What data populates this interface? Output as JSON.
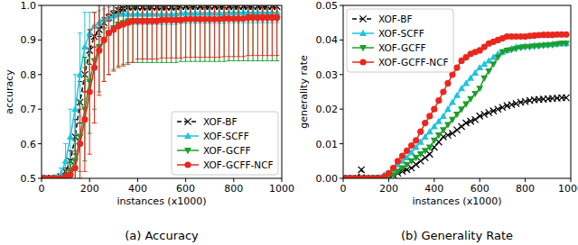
{
  "chart_data": [
    {
      "type": "line",
      "title": "(a) Accuracy",
      "x_label": "instances (x1000)",
      "y_label": "accuracy",
      "x": [
        0,
        20,
        40,
        60,
        80,
        100,
        120,
        140,
        160,
        180,
        200,
        220,
        240,
        260,
        280,
        300,
        320,
        340,
        360,
        380,
        400,
        420,
        440,
        460,
        480,
        500,
        520,
        540,
        560,
        580,
        600,
        620,
        640,
        660,
        680,
        700,
        720,
        740,
        760,
        780,
        800,
        820,
        840,
        860,
        880,
        900,
        920,
        940,
        960,
        980
      ],
      "xlim": [
        0,
        1000
      ],
      "xticks": [
        0,
        200,
        400,
        600,
        800,
        1000
      ],
      "ylim": [
        0.5,
        1.0
      ],
      "yticks": [
        0.5,
        0.6,
        0.7,
        0.8,
        0.9,
        {
          "value": 1.0,
          "label": "1.0"
        }
      ],
      "grid": false,
      "legend": "lower right",
      "series": [
        {
          "name": "XOF-BF",
          "color": "#000000",
          "marker": "x",
          "line_style": "dashed",
          "values": [
            0.5,
            0.5,
            0.5,
            0.5,
            0.505,
            0.52,
            0.55,
            0.62,
            0.72,
            0.8,
            0.87,
            0.91,
            0.93,
            0.95,
            0.965,
            0.975,
            0.985,
            0.99,
            0.995,
            0.995,
            0.995,
            0.995,
            0.995,
            0.995,
            0.995,
            0.995,
            0.995,
            0.995,
            0.995,
            0.997,
            0.997,
            0.997,
            0.997,
            0.997,
            0.997,
            0.997,
            0.997,
            0.997,
            0.997,
            0.997,
            0.997,
            0.997,
            0.997,
            0.997,
            0.997,
            0.997,
            0.997,
            0.997,
            0.997,
            0.997
          ],
          "errors": [
            0,
            0,
            0,
            0,
            0.005,
            0.01,
            0.03,
            0.05,
            0.06,
            0.05,
            0.04,
            0.03,
            0.02,
            0.015,
            0.01,
            0.01,
            0.008,
            0.006,
            0.005,
            0.005,
            0.005,
            0.005,
            0.005,
            0.005,
            0.005,
            0.005,
            0.005,
            0.005,
            0.005,
            0.004,
            0.004,
            0.004,
            0.004,
            0.004,
            0.004,
            0.004,
            0.004,
            0.004,
            0.004,
            0.004,
            0.004,
            0.004,
            0.004,
            0.004,
            0.004,
            0.004,
            0.004,
            0.004,
            0.004,
            0.004
          ]
        },
        {
          "name": "XOF-SCFF",
          "color": "#1fc3dc",
          "marker": "triangle-up",
          "line_style": "solid",
          "values": [
            0.5,
            0.5,
            0.5,
            0.5,
            0.51,
            0.55,
            0.62,
            0.7,
            0.8,
            0.88,
            0.92,
            0.94,
            0.95,
            0.96,
            0.965,
            0.97,
            0.975,
            0.975,
            0.975,
            0.975,
            0.975,
            0.975,
            0.975,
            0.975,
            0.975,
            0.975,
            0.975,
            0.975,
            0.975,
            0.978,
            0.978,
            0.978,
            0.978,
            0.978,
            0.978,
            0.978,
            0.978,
            0.978,
            0.978,
            0.98,
            0.98,
            0.98,
            0.98,
            0.98,
            0.98,
            0.98,
            0.98,
            0.98,
            0.98,
            0.98
          ],
          "errors": [
            0,
            0,
            0.005,
            0.01,
            0.02,
            0.05,
            0.08,
            0.1,
            0.12,
            0.1,
            0.06,
            0.04,
            0.035,
            0.03,
            0.03,
            0.03,
            0.03,
            0.03,
            0.03,
            0.03,
            0.03,
            0.03,
            0.03,
            0.03,
            0.03,
            0.03,
            0.03,
            0.03,
            0.03,
            0.03,
            0.03,
            0.03,
            0.03,
            0.03,
            0.03,
            0.03,
            0.03,
            0.03,
            0.03,
            0.03,
            0.03,
            0.03,
            0.03,
            0.03,
            0.03,
            0.03,
            0.03,
            0.03,
            0.03,
            0.03
          ]
        },
        {
          "name": "XOF-GCFF",
          "color": "#1e9e2a",
          "marker": "triangle-down",
          "line_style": "solid",
          "values": [
            0.5,
            0.5,
            0.5,
            0.5,
            0.5,
            0.505,
            0.52,
            0.55,
            0.62,
            0.7,
            0.78,
            0.84,
            0.88,
            0.9,
            0.92,
            0.935,
            0.945,
            0.95,
            0.955,
            0.955,
            0.955,
            0.955,
            0.955,
            0.955,
            0.955,
            0.955,
            0.955,
            0.955,
            0.955,
            0.958,
            0.958,
            0.958,
            0.958,
            0.958,
            0.958,
            0.958,
            0.958,
            0.958,
            0.958,
            0.96,
            0.96,
            0.96,
            0.96,
            0.96,
            0.96,
            0.96,
            0.96,
            0.96,
            0.96,
            0.96
          ],
          "errors": [
            0,
            0,
            0,
            0,
            0.005,
            0.01,
            0.03,
            0.06,
            0.1,
            0.15,
            0.15,
            0.14,
            0.13,
            0.12,
            0.12,
            0.12,
            0.12,
            0.12,
            0.12,
            0.12,
            0.12,
            0.12,
            0.12,
            0.12,
            0.12,
            0.12,
            0.12,
            0.12,
            0.12,
            0.12,
            0.12,
            0.12,
            0.12,
            0.12,
            0.12,
            0.12,
            0.12,
            0.12,
            0.12,
            0.12,
            0.12,
            0.12,
            0.12,
            0.12,
            0.12,
            0.12,
            0.12,
            0.12,
            0.12,
            0.12
          ]
        },
        {
          "name": "XOF-GCFF-NCF",
          "color": "#e8281e",
          "marker": "circle",
          "line_style": "solid",
          "values": [
            0.5,
            0.5,
            0.5,
            0.5,
            0.5,
            0.505,
            0.51,
            0.53,
            0.6,
            0.67,
            0.75,
            0.82,
            0.87,
            0.9,
            0.92,
            0.93,
            0.94,
            0.945,
            0.95,
            0.955,
            0.955,
            0.955,
            0.955,
            0.955,
            0.955,
            0.958,
            0.958,
            0.958,
            0.958,
            0.958,
            0.96,
            0.96,
            0.96,
            0.96,
            0.96,
            0.96,
            0.96,
            0.96,
            0.962,
            0.962,
            0.962,
            0.962,
            0.962,
            0.965,
            0.965,
            0.965,
            0.965,
            0.965,
            0.965,
            0.965
          ],
          "errors": [
            0,
            0,
            0,
            0,
            0.005,
            0.01,
            0.02,
            0.05,
            0.1,
            0.15,
            0.18,
            0.16,
            0.13,
            0.12,
            0.12,
            0.12,
            0.12,
            0.12,
            0.12,
            0.12,
            0.11,
            0.11,
            0.11,
            0.11,
            0.11,
            0.11,
            0.11,
            0.11,
            0.11,
            0.11,
            0.11,
            0.11,
            0.11,
            0.11,
            0.11,
            0.11,
            0.11,
            0.11,
            0.11,
            0.11,
            0.11,
            0.11,
            0.11,
            0.11,
            0.11,
            0.11,
            0.11,
            0.11,
            0.11,
            0.11
          ]
        }
      ]
    },
    {
      "type": "line",
      "title": "(b) Generality Rate",
      "x_label": "instances (x1000)",
      "y_label": "generality rate",
      "x": [
        0,
        20,
        40,
        60,
        80,
        100,
        120,
        140,
        160,
        180,
        200,
        220,
        240,
        260,
        280,
        300,
        320,
        340,
        360,
        380,
        400,
        420,
        440,
        460,
        480,
        500,
        520,
        540,
        560,
        580,
        600,
        620,
        640,
        660,
        680,
        700,
        720,
        740,
        760,
        780,
        800,
        820,
        840,
        860,
        880,
        900,
        920,
        940,
        960,
        980
      ],
      "xlim": [
        0,
        1000
      ],
      "xticks": [
        0,
        200,
        400,
        600,
        800,
        1000
      ],
      "ylim": [
        0,
        0.05
      ],
      "yticks": [
        {
          "value": 0,
          "label": "0.00"
        },
        0.01,
        0.02,
        0.03,
        0.04,
        0.05
      ],
      "grid": false,
      "legend": "upper left",
      "series": [
        {
          "name": "XOF-BF",
          "color": "#000000",
          "marker": "x",
          "line_style": "dashed",
          "values": [
            0,
            0,
            0,
            0,
            0.0025,
            0,
            0,
            0,
            0,
            0,
            0.0005,
            0.001,
            0.0015,
            0.002,
            0.0025,
            0.003,
            0.004,
            0.005,
            0.006,
            0.007,
            0.009,
            0.0105,
            0.012,
            0.0125,
            0.013,
            0.014,
            0.015,
            0.016,
            0.0165,
            0.017,
            0.018,
            0.0185,
            0.019,
            0.0195,
            0.02,
            0.0205,
            0.021,
            0.0213,
            0.0216,
            0.022,
            0.0222,
            0.0225,
            0.0227,
            0.0228,
            0.0229,
            0.023,
            0.0231,
            0.0232,
            0.0233,
            0.0233
          ]
        },
        {
          "name": "XOF-SCFF",
          "color": "#1fc3dc",
          "marker": "triangle-up",
          "line_style": "solid",
          "values": [
            0,
            0,
            0,
            0,
            0,
            0,
            0,
            0,
            0.0003,
            0.001,
            0.0015,
            0.0025,
            0.004,
            0.005,
            0.006,
            0.0075,
            0.009,
            0.0105,
            0.012,
            0.0135,
            0.015,
            0.0165,
            0.018,
            0.02,
            0.022,
            0.024,
            0.026,
            0.0275,
            0.029,
            0.0305,
            0.032,
            0.033,
            0.034,
            0.035,
            0.036,
            0.0365,
            0.037,
            0.0375,
            0.038,
            0.038,
            0.0382,
            0.0383,
            0.0384,
            0.0385,
            0.0386,
            0.0387,
            0.0388,
            0.0389,
            0.039,
            0.039
          ]
        },
        {
          "name": "XOF-GCFF",
          "color": "#1e9e2a",
          "marker": "triangle-down",
          "line_style": "solid",
          "values": [
            0,
            0,
            0,
            0,
            0,
            0,
            0,
            0,
            0,
            0,
            0.0005,
            0.001,
            0.002,
            0.003,
            0.004,
            0.005,
            0.006,
            0.007,
            0.008,
            0.009,
            0.011,
            0.0125,
            0.014,
            0.0155,
            0.017,
            0.0185,
            0.02,
            0.0215,
            0.023,
            0.0245,
            0.026,
            0.029,
            0.031,
            0.033,
            0.035,
            0.0365,
            0.037,
            0.0372,
            0.0375,
            0.0378,
            0.038,
            0.038,
            0.0382,
            0.0383,
            0.0384,
            0.0385,
            0.0386,
            0.0388,
            0.039,
            0.039
          ]
        },
        {
          "name": "XOF-GCFF-NCF",
          "color": "#e8281e",
          "marker": "circle",
          "line_style": "solid",
          "values": [
            0,
            0,
            0,
            0,
            0,
            0,
            0,
            0,
            0,
            0.0005,
            0.0015,
            0.003,
            0.005,
            0.0065,
            0.008,
            0.0095,
            0.011,
            0.0135,
            0.016,
            0.018,
            0.02,
            0.0225,
            0.025,
            0.0275,
            0.03,
            0.032,
            0.034,
            0.035,
            0.036,
            0.0365,
            0.037,
            0.038,
            0.039,
            0.0395,
            0.04,
            0.0405,
            0.041,
            0.041,
            0.041,
            0.041,
            0.041,
            0.0412,
            0.0413,
            0.0414,
            0.0415,
            0.0415,
            0.0415,
            0.0416,
            0.0416,
            0.0416
          ]
        }
      ]
    }
  ]
}
